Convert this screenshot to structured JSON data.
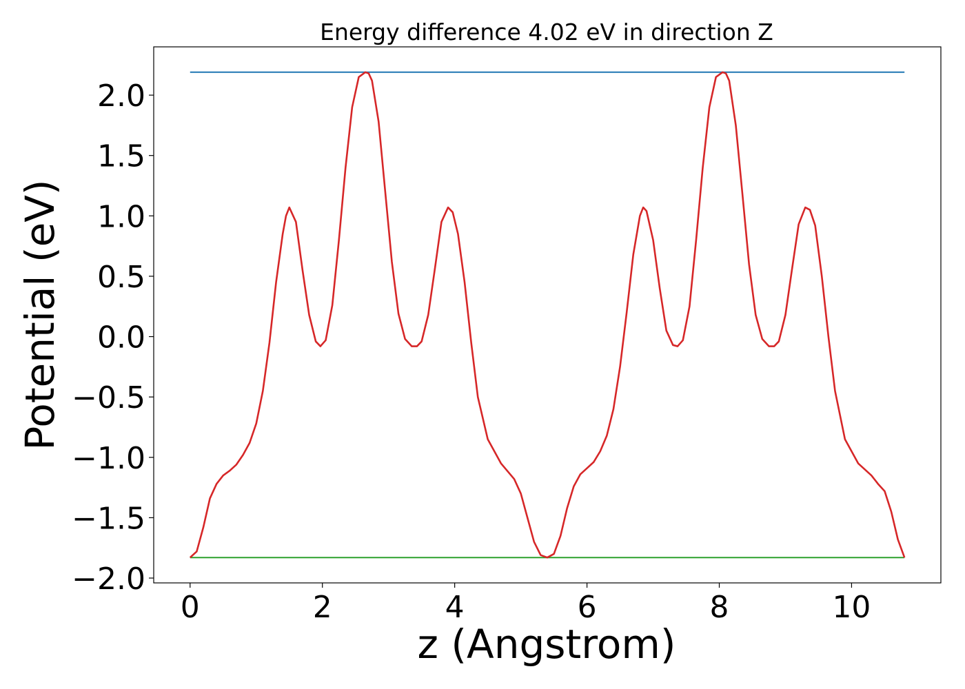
{
  "chart_data": {
    "type": "line",
    "title": "Energy difference 4.02 eV in direction Z",
    "xlabel": "z (Angstrom)",
    "ylabel": "Potential (eV)",
    "xlim": [
      -0.55,
      11.35
    ],
    "ylim": [
      -2.04,
      2.4
    ],
    "grid": false,
    "xticks": [
      0,
      2,
      4,
      6,
      8,
      10
    ],
    "xtick_labels": [
      "0",
      "2",
      "4",
      "6",
      "8",
      "10"
    ],
    "yticks": [
      -2.0,
      -1.5,
      -1.0,
      -0.5,
      0.0,
      0.5,
      1.0,
      1.5,
      2.0
    ],
    "ytick_labels": [
      "−2.0",
      "−1.5",
      "−1.0",
      "−0.5",
      "0.0",
      "0.5",
      "1.0",
      "1.5",
      "2.0"
    ],
    "series": [
      {
        "color": "#1f77b4",
        "x": [
          0,
          10.8
        ],
        "y": [
          2.19,
          2.19
        ]
      },
      {
        "color": "#2ca02c",
        "x": [
          0,
          10.8
        ],
        "y": [
          -1.83,
          -1.83
        ]
      },
      {
        "color": "#d62728",
        "x": [
          0,
          0.1,
          0.2,
          0.3,
          0.4,
          0.5,
          0.6,
          0.7,
          0.8,
          0.9,
          1.0,
          1.1,
          1.2,
          1.3,
          1.4,
          1.45,
          1.5,
          1.6,
          1.7,
          1.8,
          1.9,
          1.97,
          2.05,
          2.15,
          2.25,
          2.35,
          2.45,
          2.55,
          2.65,
          2.7,
          2.75,
          2.85,
          2.95,
          3.05,
          3.15,
          3.25,
          3.35,
          3.43,
          3.5,
          3.6,
          3.7,
          3.8,
          3.9,
          3.97,
          4.05,
          4.15,
          4.25,
          4.35,
          4.5,
          4.7,
          4.9,
          5.0,
          5.1,
          5.2,
          5.3,
          5.4,
          5.5,
          5.6,
          5.7,
          5.8,
          5.9,
          6.0,
          6.1,
          6.2,
          6.3,
          6.4,
          6.5,
          6.6,
          6.7,
          6.8,
          6.85,
          6.9,
          7.0,
          7.1,
          7.2,
          7.3,
          7.37,
          7.45,
          7.55,
          7.65,
          7.75,
          7.85,
          7.95,
          8.05,
          8.1,
          8.15,
          8.25,
          8.35,
          8.45,
          8.55,
          8.65,
          8.75,
          8.83,
          8.9,
          9.0,
          9.1,
          9.2,
          9.3,
          9.37,
          9.45,
          9.55,
          9.65,
          9.75,
          9.9,
          10.1,
          10.3,
          10.4,
          10.5,
          10.6,
          10.7,
          10.8
        ],
        "y": [
          -1.83,
          -1.78,
          -1.58,
          -1.34,
          -1.22,
          -1.15,
          -1.11,
          -1.06,
          -0.98,
          -0.88,
          -0.72,
          -0.45,
          -0.05,
          0.45,
          0.85,
          1.0,
          1.07,
          0.95,
          0.55,
          0.18,
          -0.04,
          -0.08,
          -0.03,
          0.26,
          0.8,
          1.4,
          1.9,
          2.15,
          2.19,
          2.18,
          2.12,
          1.78,
          1.2,
          0.62,
          0.19,
          -0.02,
          -0.08,
          -0.08,
          -0.04,
          0.18,
          0.56,
          0.95,
          1.07,
          1.03,
          0.85,
          0.45,
          -0.05,
          -0.5,
          -0.85,
          -1.05,
          -1.18,
          -1.3,
          -1.5,
          -1.7,
          -1.81,
          -1.83,
          -1.8,
          -1.65,
          -1.42,
          -1.24,
          -1.14,
          -1.09,
          -1.04,
          -0.95,
          -0.82,
          -0.6,
          -0.25,
          0.2,
          0.68,
          1.0,
          1.07,
          1.04,
          0.8,
          0.4,
          0.05,
          -0.07,
          -0.08,
          -0.03,
          0.25,
          0.8,
          1.4,
          1.9,
          2.15,
          2.19,
          2.18,
          2.12,
          1.75,
          1.18,
          0.6,
          0.18,
          -0.02,
          -0.08,
          -0.08,
          -0.04,
          0.18,
          0.56,
          0.93,
          1.07,
          1.05,
          0.92,
          0.5,
          0.0,
          -0.45,
          -0.85,
          -1.05,
          -1.15,
          -1.22,
          -1.28,
          -1.45,
          -1.68,
          -1.83
        ]
      }
    ]
  }
}
